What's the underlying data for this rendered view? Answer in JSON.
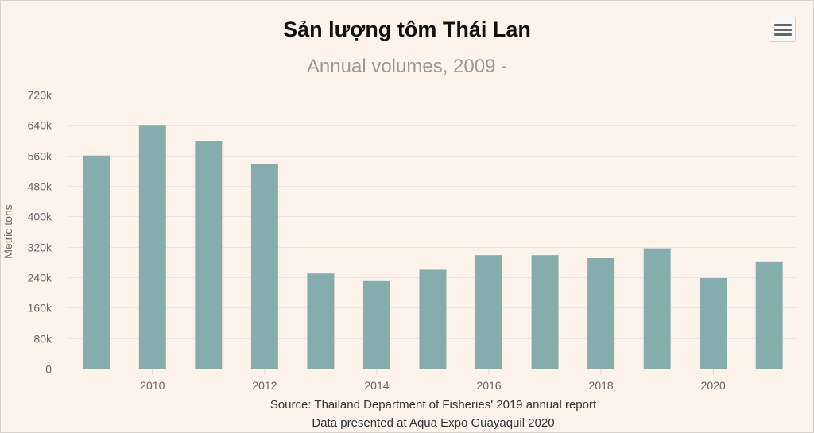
{
  "colors": {
    "bar": "#86adad",
    "grid": "#e6e6e6",
    "axis": "#ccd6eb",
    "text": "#666666"
  },
  "menu": {
    "icon": "hamburger-menu-icon"
  },
  "chart_data": {
    "type": "bar",
    "title": "Sản lượng tôm Thái Lan",
    "subtitle": "Annual volumes, 2009 -",
    "ylabel": "Metric tons",
    "xlabel": "",
    "ylim": [
      0,
      720000
    ],
    "y_ticks": [
      0,
      80000,
      160000,
      240000,
      320000,
      400000,
      480000,
      560000,
      640000,
      720000
    ],
    "y_tick_labels": [
      "0",
      "80k",
      "160k",
      "240k",
      "320k",
      "400k",
      "480k",
      "560k",
      "640k",
      "720k"
    ],
    "x_tick_labels": [
      "2010",
      "2012",
      "2014",
      "2016",
      "2018",
      "2020"
    ],
    "categories": [
      2009,
      2010,
      2011,
      2012,
      2013,
      2014,
      2015,
      2016,
      2017,
      2018,
      2019,
      2020,
      2021
    ],
    "values": [
      560000,
      640000,
      598000,
      537000,
      250000,
      230000,
      260000,
      298000,
      298000,
      290000,
      316000,
      238000,
      280000
    ],
    "grid": true,
    "legend": "none",
    "source_line1": "Source: Thailand Department of Fisheries' 2019 annual report",
    "source_line2": "Data presented at Aqua Expo Guayaquil 2020"
  }
}
